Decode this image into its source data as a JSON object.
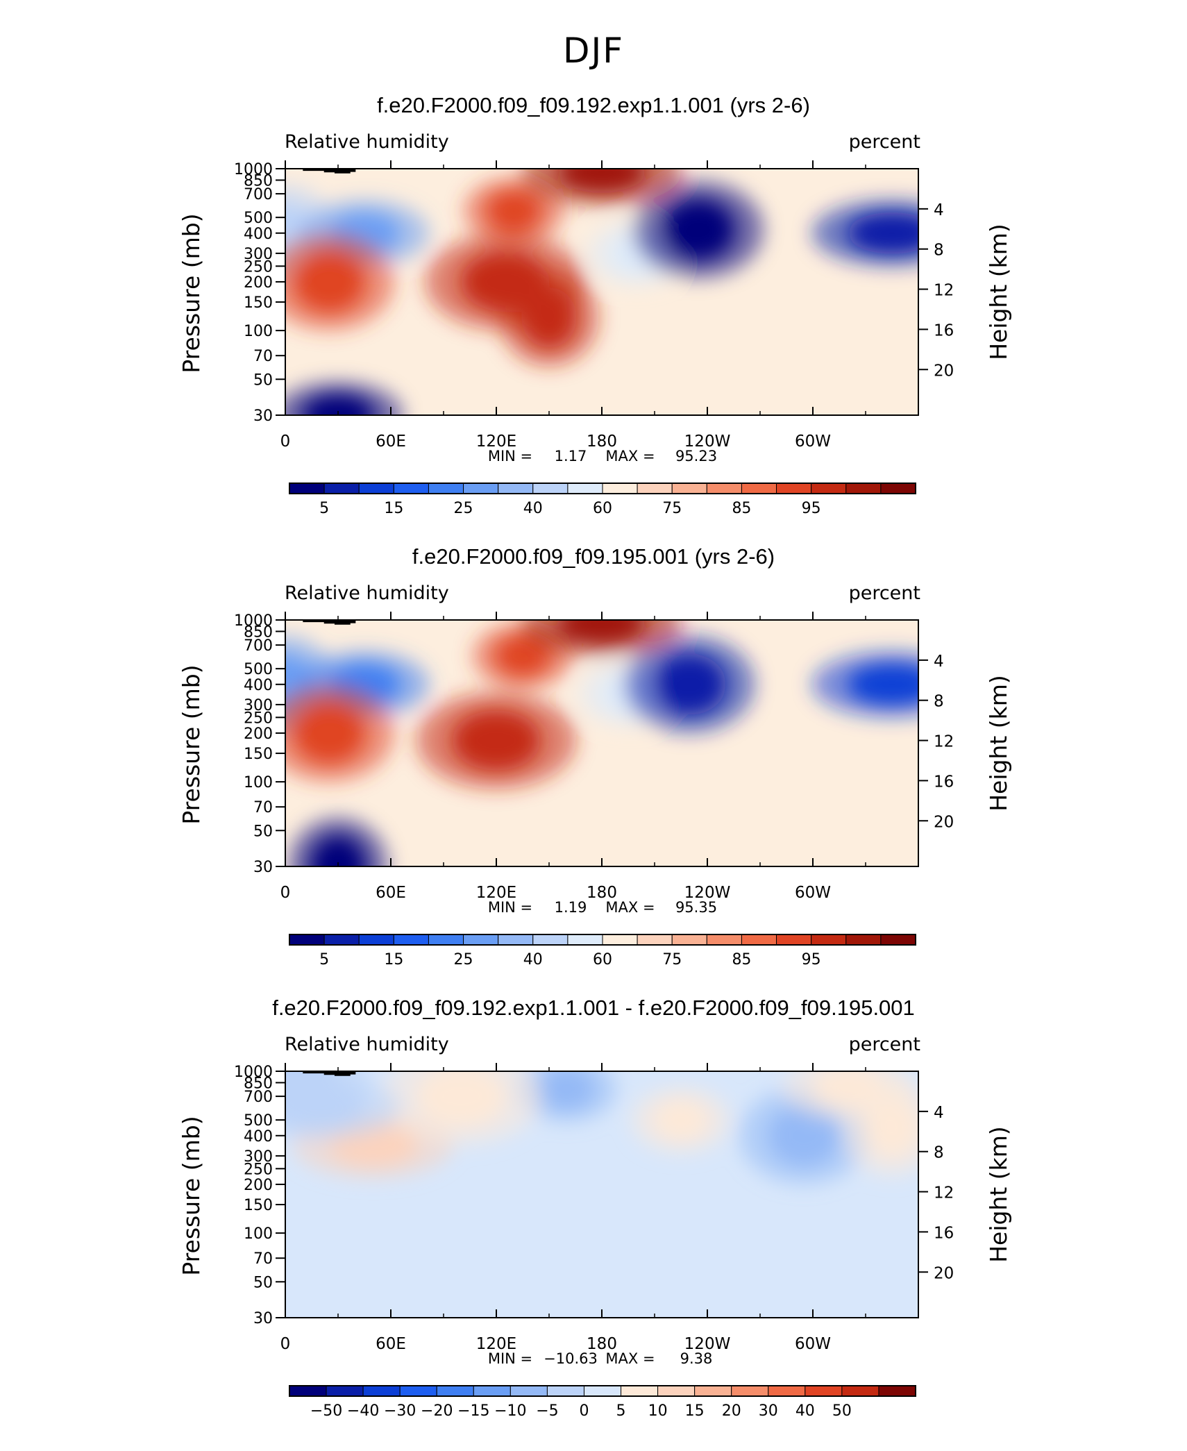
{
  "page_title": "DJF",
  "panels": [
    {
      "title": "f.e20.F2000.f09_f09.192.exp1.1.001 (yrs 2-6)",
      "left_label": "Relative humidity",
      "right_label": "percent",
      "stats": {
        "min_label": "MIN =",
        "min_value": "1.17",
        "max_label": "MAX =",
        "max_value": "95.23"
      },
      "colorbar_labels": [
        "5",
        "15",
        "25",
        "40",
        "60",
        "75",
        "85",
        "95"
      ],
      "kind": "abs"
    },
    {
      "title": "f.e20.F2000.f09_f09.195.001 (yrs 2-6)",
      "left_label": "Relative humidity",
      "right_label": "percent",
      "stats": {
        "min_label": "MIN =",
        "min_value": "1.19",
        "max_label": "MAX =",
        "max_value": "95.35"
      },
      "colorbar_labels": [
        "5",
        "15",
        "25",
        "40",
        "60",
        "75",
        "85",
        "95"
      ],
      "kind": "abs"
    },
    {
      "title": "f.e20.F2000.f09_f09.192.exp1.1.001 - f.e20.F2000.f09_f09.195.001",
      "left_label": "Relative humidity",
      "right_label": "percent",
      "stats": {
        "min_label": "MIN =",
        "min_value": "−10.63",
        "max_label": "MAX =",
        "max_value": "9.38"
      },
      "colorbar_labels": [
        "−50",
        "−40",
        "−30",
        "−20",
        "−15",
        "−10",
        "−5",
        "0",
        "5",
        "10",
        "15",
        "20",
        "30",
        "40",
        "50"
      ],
      "kind": "diff"
    }
  ],
  "chart_data": {
    "type": "heatmap",
    "x_ticks": [
      "0",
      "60E",
      "120E",
      "180",
      "120W",
      "60W"
    ],
    "x_tick_values": [
      0,
      60,
      120,
      180,
      240,
      300
    ],
    "xlim": [
      0,
      360
    ],
    "y_label": "Pressure (mb)",
    "y_ticks": [
      "30",
      "50",
      "70",
      "100",
      "150",
      "200",
      "250",
      "300",
      "400",
      "500",
      "700",
      "850",
      "1000"
    ],
    "y_tick_values": [
      30,
      50,
      70,
      100,
      150,
      200,
      250,
      300,
      400,
      500,
      700,
      850,
      1000
    ],
    "ylim": [
      1000,
      30
    ],
    "y_scale": "log",
    "y2_label": "Height (km)",
    "y2_ticks": [
      "20",
      "16",
      "12",
      "8",
      "4"
    ],
    "y2_tick_values": [
      20,
      16,
      12,
      8,
      4
    ],
    "colors_abs": [
      "#00007a",
      "#0a1fa8",
      "#0c3fd6",
      "#1e5ef0",
      "#3f7ff2",
      "#6a9ef4",
      "#94b9f6",
      "#bcd3f8",
      "#deebfa",
      "#fdeede",
      "#fcd3bd",
      "#f9b294",
      "#f58d6a",
      "#f06a45",
      "#e04424",
      "#c42a12",
      "#a11708",
      "#7d0604"
    ],
    "colors_diff": [
      "#00007a",
      "#0a1fa8",
      "#0c3fd6",
      "#1e5ef0",
      "#3f7ff2",
      "#6a9ef4",
      "#94b9f6",
      "#bcd3f8",
      "#d8e7fb",
      "#fde9d8",
      "#fcd3bd",
      "#f9b294",
      "#f58d6a",
      "#f06a45",
      "#e04424",
      "#c42a12",
      "#7d0604"
    ],
    "panels": [
      {
        "name": "f.e20.F2000.f09_f09.192.exp1.1.001 (yrs 2-6)",
        "background": 60,
        "features": [
          {
            "lon": 200,
            "p": 300,
            "value": 40,
            "level": 8
          },
          {
            "lon": 235,
            "p": 420,
            "value": 5,
            "level": 0
          },
          {
            "lon": 345,
            "p": 400,
            "value": 10,
            "level": 1
          },
          {
            "lon": 0,
            "p": 400,
            "value": 40,
            "level": 7
          },
          {
            "lon": 45,
            "p": 400,
            "value": 30,
            "level": 5
          },
          {
            "lon": 125,
            "p": 200,
            "value": 85,
            "level": 15
          },
          {
            "lon": 130,
            "p": 550,
            "value": 80,
            "level": 14
          },
          {
            "lon": 25,
            "p": 200,
            "value": 80,
            "level": 14
          },
          {
            "lon": 180,
            "p": 950,
            "value": 90,
            "level": 16
          },
          {
            "lon": 150,
            "p": 120,
            "value": 85,
            "level": 15
          },
          {
            "lon": 30,
            "p": 30,
            "value": 5,
            "level": 0
          }
        ]
      },
      {
        "name": "f.e20.F2000.f09_f09.195.001 (yrs 2-6)",
        "background": 60,
        "features": [
          {
            "lon": 195,
            "p": 350,
            "value": 40,
            "level": 8
          },
          {
            "lon": 230,
            "p": 400,
            "value": 10,
            "level": 1
          },
          {
            "lon": 345,
            "p": 400,
            "value": 15,
            "level": 2
          },
          {
            "lon": 0,
            "p": 400,
            "value": 30,
            "level": 5
          },
          {
            "lon": 45,
            "p": 400,
            "value": 25,
            "level": 4
          },
          {
            "lon": 120,
            "p": 180,
            "value": 85,
            "level": 15
          },
          {
            "lon": 135,
            "p": 600,
            "value": 80,
            "level": 14
          },
          {
            "lon": 25,
            "p": 200,
            "value": 80,
            "level": 14
          },
          {
            "lon": 180,
            "p": 950,
            "value": 90,
            "level": 16
          },
          {
            "lon": 30,
            "p": 30,
            "value": 5,
            "level": 0
          }
        ]
      },
      {
        "name": "f.e20.F2000.f09_f09.192.exp1.1.001 - f.e20.F2000.f09_f09.195.001",
        "background": -2,
        "features": [
          {
            "lon": 160,
            "p": 780,
            "value": -10,
            "level": 6
          },
          {
            "lon": 295,
            "p": 400,
            "value": -10,
            "level": 6
          },
          {
            "lon": 50,
            "p": 350,
            "value": 5,
            "level": 10
          },
          {
            "lon": 345,
            "p": 450,
            "value": 5,
            "level": 9
          },
          {
            "lon": 320,
            "p": 800,
            "value": 5,
            "level": 9
          },
          {
            "lon": 100,
            "p": 700,
            "value": 5,
            "level": 9
          },
          {
            "lon": 225,
            "p": 500,
            "value": 5,
            "level": 9
          },
          {
            "lon": 10,
            "p": 870,
            "value": -5,
            "level": 7
          },
          {
            "lon": 20,
            "p": 600,
            "value": -5,
            "level": 7
          }
        ]
      }
    ],
    "grid": false,
    "legend": "colorbar-bottom"
  }
}
